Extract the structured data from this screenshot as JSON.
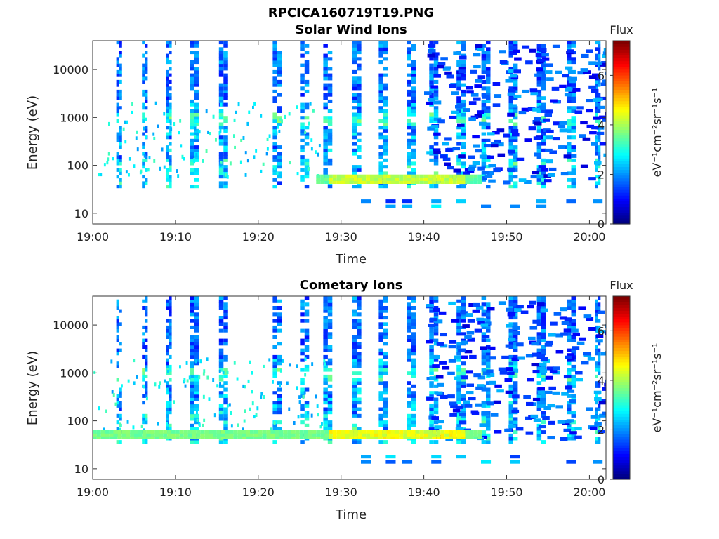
{
  "figure_title": "RPCICA160719T19.PNG",
  "chart_data": [
    {
      "type": "heatmap",
      "title": "Solar Wind Ions",
      "xlabel": "Time",
      "ylabel": "Energy (eV)",
      "x_ticks": [
        "19:00",
        "19:10",
        "19:20",
        "19:30",
        "19:40",
        "19:50",
        "20:00"
      ],
      "x_tick_minutes": [
        0,
        10,
        20,
        30,
        40,
        50,
        60
      ],
      "xlim_minutes": [
        0,
        62
      ],
      "y_scale": "log",
      "y_ticks": [
        "10",
        "100",
        "1000",
        "10000"
      ],
      "y_tick_values": [
        10,
        100,
        1000,
        10000
      ],
      "ylim": [
        6,
        40000
      ],
      "colorbar": {
        "label": "Flux",
        "unit": "eV⁻¹cm⁻²sr⁻¹s⁻¹",
        "ticks": [
          "0",
          "2",
          "4",
          "6"
        ],
        "range": [
          0,
          7.4
        ]
      },
      "features": {
        "bursts_minutes": [
          3.2,
          6.3,
          9.2,
          12.3,
          15.8,
          22.3,
          25.6,
          28.4,
          31.9,
          35.1,
          38.5,
          41.2,
          44.5,
          47.5,
          50.8,
          54.2,
          57.8,
          61
        ],
        "low_energy_band_eV": [
          45,
          60
        ],
        "low_energy_band_minutes": [
          27,
          47
        ],
        "band_peak_flux": 4.5
      }
    },
    {
      "type": "heatmap",
      "title": "Cometary Ions",
      "xlabel": "Time",
      "ylabel": "Energy (eV)",
      "x_ticks": [
        "19:00",
        "19:10",
        "19:20",
        "19:30",
        "19:40",
        "19:50",
        "20:00"
      ],
      "x_tick_minutes": [
        0,
        10,
        20,
        30,
        40,
        50,
        60
      ],
      "xlim_minutes": [
        0,
        62
      ],
      "y_scale": "log",
      "y_ticks": [
        "10",
        "100",
        "1000",
        "10000"
      ],
      "y_tick_values": [
        10,
        100,
        1000,
        10000
      ],
      "ylim": [
        6,
        40000
      ],
      "colorbar": {
        "label": "Flux",
        "unit": "eV⁻¹cm⁻²sr⁻¹s⁻¹",
        "ticks": [
          "0",
          "2",
          "4",
          "6"
        ],
        "range": [
          0,
          7.4
        ]
      },
      "features": {
        "bursts_minutes": [
          3.2,
          6.3,
          9.2,
          12.3,
          15.8,
          22.3,
          25.6,
          28.4,
          31.9,
          35.1,
          38.5,
          41.2,
          44.5,
          47.5,
          50.8,
          54.2,
          57.8,
          61
        ],
        "low_energy_band_eV": [
          45,
          60
        ],
        "low_energy_band_minutes": [
          0,
          47
        ],
        "band_peak_flux": 4.8
      }
    }
  ]
}
